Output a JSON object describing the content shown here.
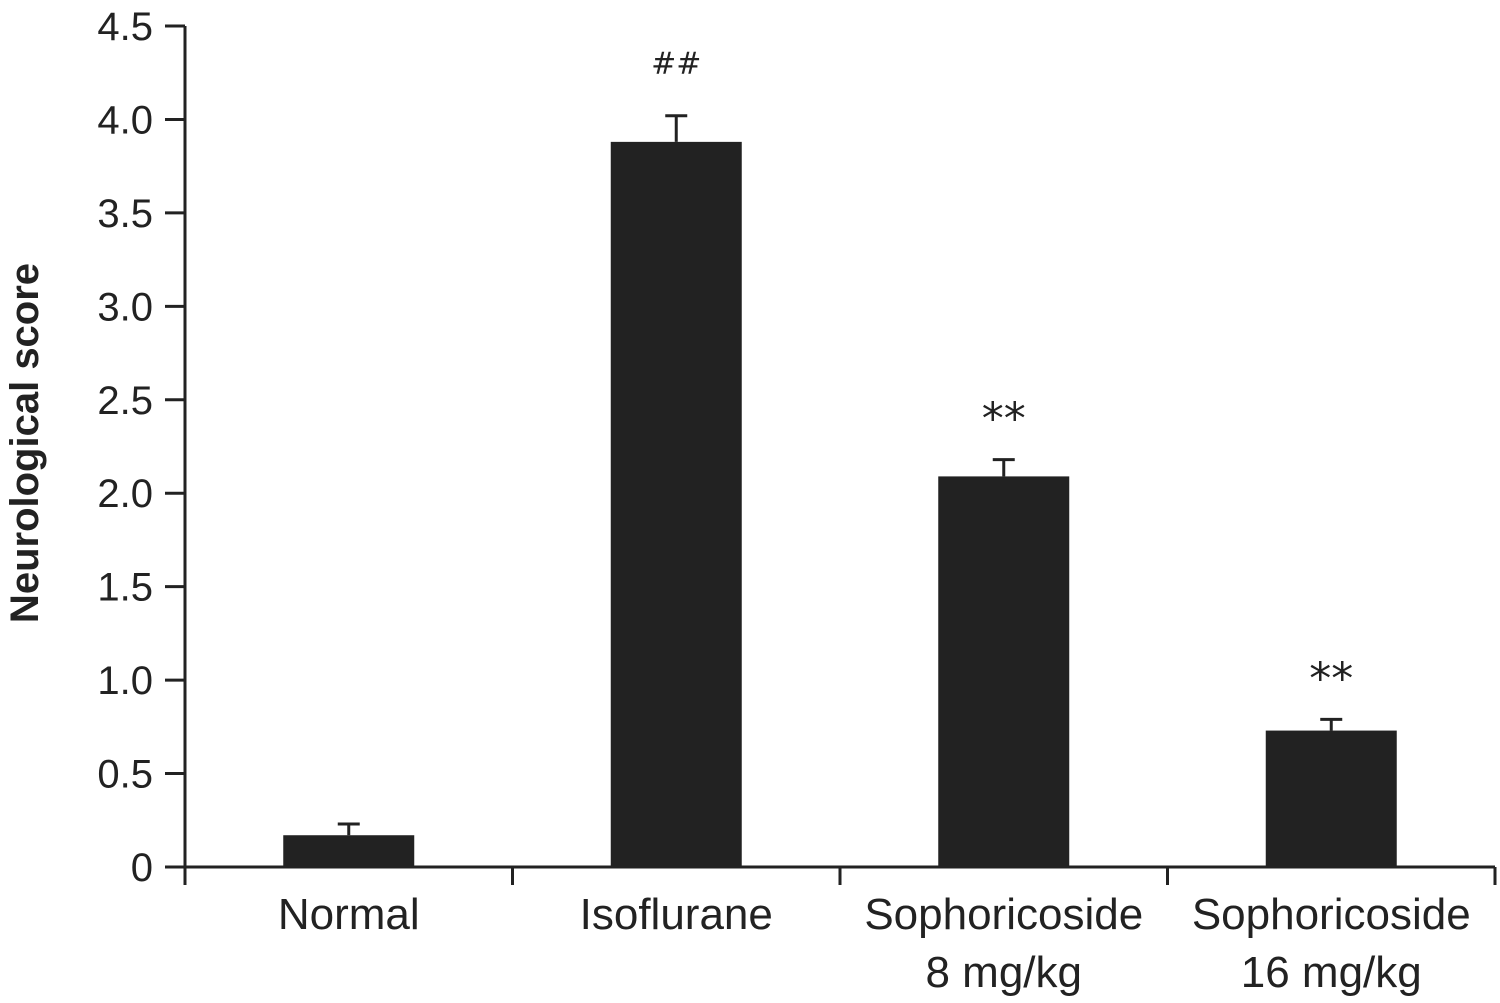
{
  "chart_data": {
    "type": "bar",
    "categories": [
      [
        "Normal"
      ],
      [
        "Isoflurane"
      ],
      [
        "Sophoricoside",
        "8 mg/kg"
      ],
      [
        "Sophoricoside",
        "16 mg/kg"
      ]
    ],
    "values": [
      0.17,
      3.88,
      2.09,
      0.73
    ],
    "error": [
      0.06,
      0.14,
      0.09,
      0.06
    ],
    "annotations": [
      "",
      "##",
      "**",
      "**"
    ],
    "ylabel": "Neurological score",
    "xlabel": "",
    "title": "",
    "ylim": [
      0,
      4.5
    ],
    "yticks": [
      0,
      0.5,
      1.0,
      1.5,
      2.0,
      2.5,
      3.0,
      3.5,
      4.0,
      4.5
    ],
    "ytick_labels": [
      "0",
      "0.5",
      "1.0",
      "1.5",
      "2.0",
      "2.5",
      "3.0",
      "3.5",
      "4.0",
      "4.5"
    ],
    "grid": false,
    "bar_color": "#222222",
    "axis_color": "#222222"
  }
}
